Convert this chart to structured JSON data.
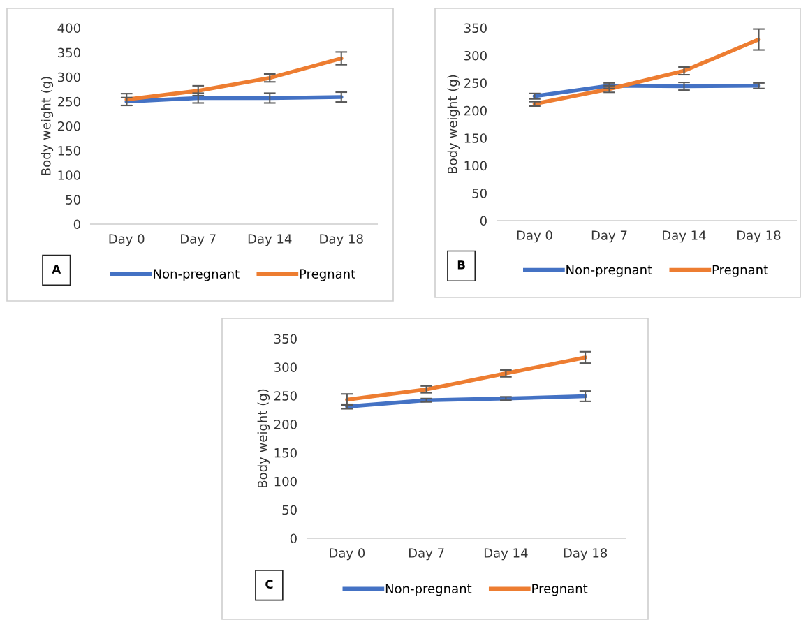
{
  "chart_data": [
    {
      "type": "line",
      "ylabel": "Body weight (g)",
      "categories": [
        "Day 0",
        "Day 7",
        "Day 14",
        "Day 18"
      ],
      "ylim": [
        0,
        400
      ],
      "yticks": [
        0,
        50,
        100,
        150,
        200,
        250,
        300,
        350,
        400
      ],
      "grid": false,
      "legend": "bottom",
      "marker": "none",
      "annotations": [
        "A"
      ],
      "series": [
        {
          "name": "Non-pregnant",
          "color": "#4472c4",
          "values": [
            250,
            257,
            257,
            259
          ],
          "errors": [
            8,
            10,
            10,
            10
          ]
        },
        {
          "name": "Pregnant",
          "color": "#ed7d31",
          "values": [
            254,
            272,
            298,
            338
          ],
          "errors": [
            12,
            10,
            8,
            13
          ]
        }
      ]
    },
    {
      "type": "line",
      "ylabel": "Body weight (g)",
      "categories": [
        "Day 0",
        "Day 7",
        "Day 14",
        "Day 18"
      ],
      "ylim": [
        0,
        350
      ],
      "yticks": [
        0,
        50,
        100,
        150,
        200,
        250,
        300,
        350
      ],
      "grid": false,
      "legend": "bottom",
      "marker": "none",
      "annotations": [
        "B"
      ],
      "series": [
        {
          "name": "Non-pregnant",
          "color": "#4472c4",
          "values": [
            226,
            245,
            244,
            245
          ],
          "errors": [
            5,
            5,
            7,
            5
          ]
        },
        {
          "name": "Pregnant",
          "color": "#ed7d31",
          "values": [
            212,
            239,
            272,
            329
          ],
          "errors": [
            4,
            6,
            7,
            19
          ]
        }
      ]
    },
    {
      "type": "line",
      "ylabel": "Body weight (g)",
      "categories": [
        "Day 0",
        "Day 7",
        "Day 14",
        "Day 18"
      ],
      "ylim": [
        0,
        350
      ],
      "yticks": [
        0,
        50,
        100,
        150,
        200,
        250,
        300,
        350
      ],
      "grid": false,
      "legend": "bottom",
      "marker": "none",
      "annotations": [
        "C"
      ],
      "series": [
        {
          "name": "Non-pregnant",
          "color": "#4472c4",
          "values": [
            231,
            242,
            245,
            249
          ],
          "errors": [
            4,
            3,
            3,
            9
          ]
        },
        {
          "name": "Pregnant",
          "color": "#ed7d31",
          "values": [
            243,
            261,
            289,
            317
          ],
          "errors": [
            10,
            6,
            6,
            10
          ]
        }
      ]
    }
  ]
}
